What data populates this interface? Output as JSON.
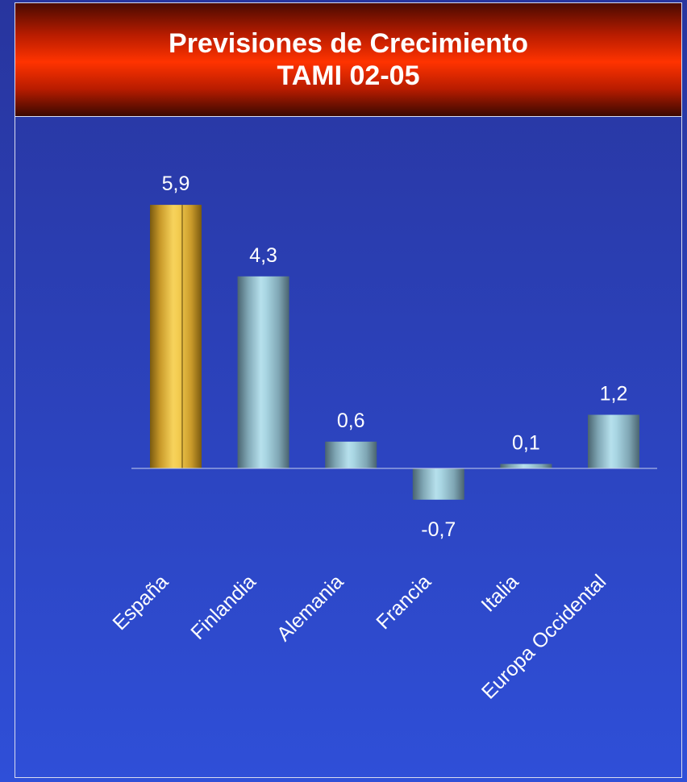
{
  "title": {
    "line1": "Previsiones de Crecimiento",
    "line2": "TAMI 02-05"
  },
  "colors": {
    "highlight": "#f2c44a",
    "bar": "#a8d4e0",
    "axis": "#c8d0f0",
    "text": "#ffffff"
  },
  "chart_data": {
    "type": "bar",
    "categories": [
      "España",
      "Finlandia",
      "Alemania",
      "Francia",
      "Italia",
      "Europa Occidental"
    ],
    "values": [
      5.9,
      4.3,
      0.6,
      -0.7,
      0.1,
      1.2
    ],
    "value_labels": [
      "5,9",
      "4,3",
      "0,6",
      "-0,7",
      "0,1",
      "1,2"
    ],
    "highlight_category": "España",
    "title": "Previsiones de Crecimiento TAMI 02-05",
    "xlabel": "",
    "ylabel": "",
    "grid": false,
    "legend": "none"
  }
}
